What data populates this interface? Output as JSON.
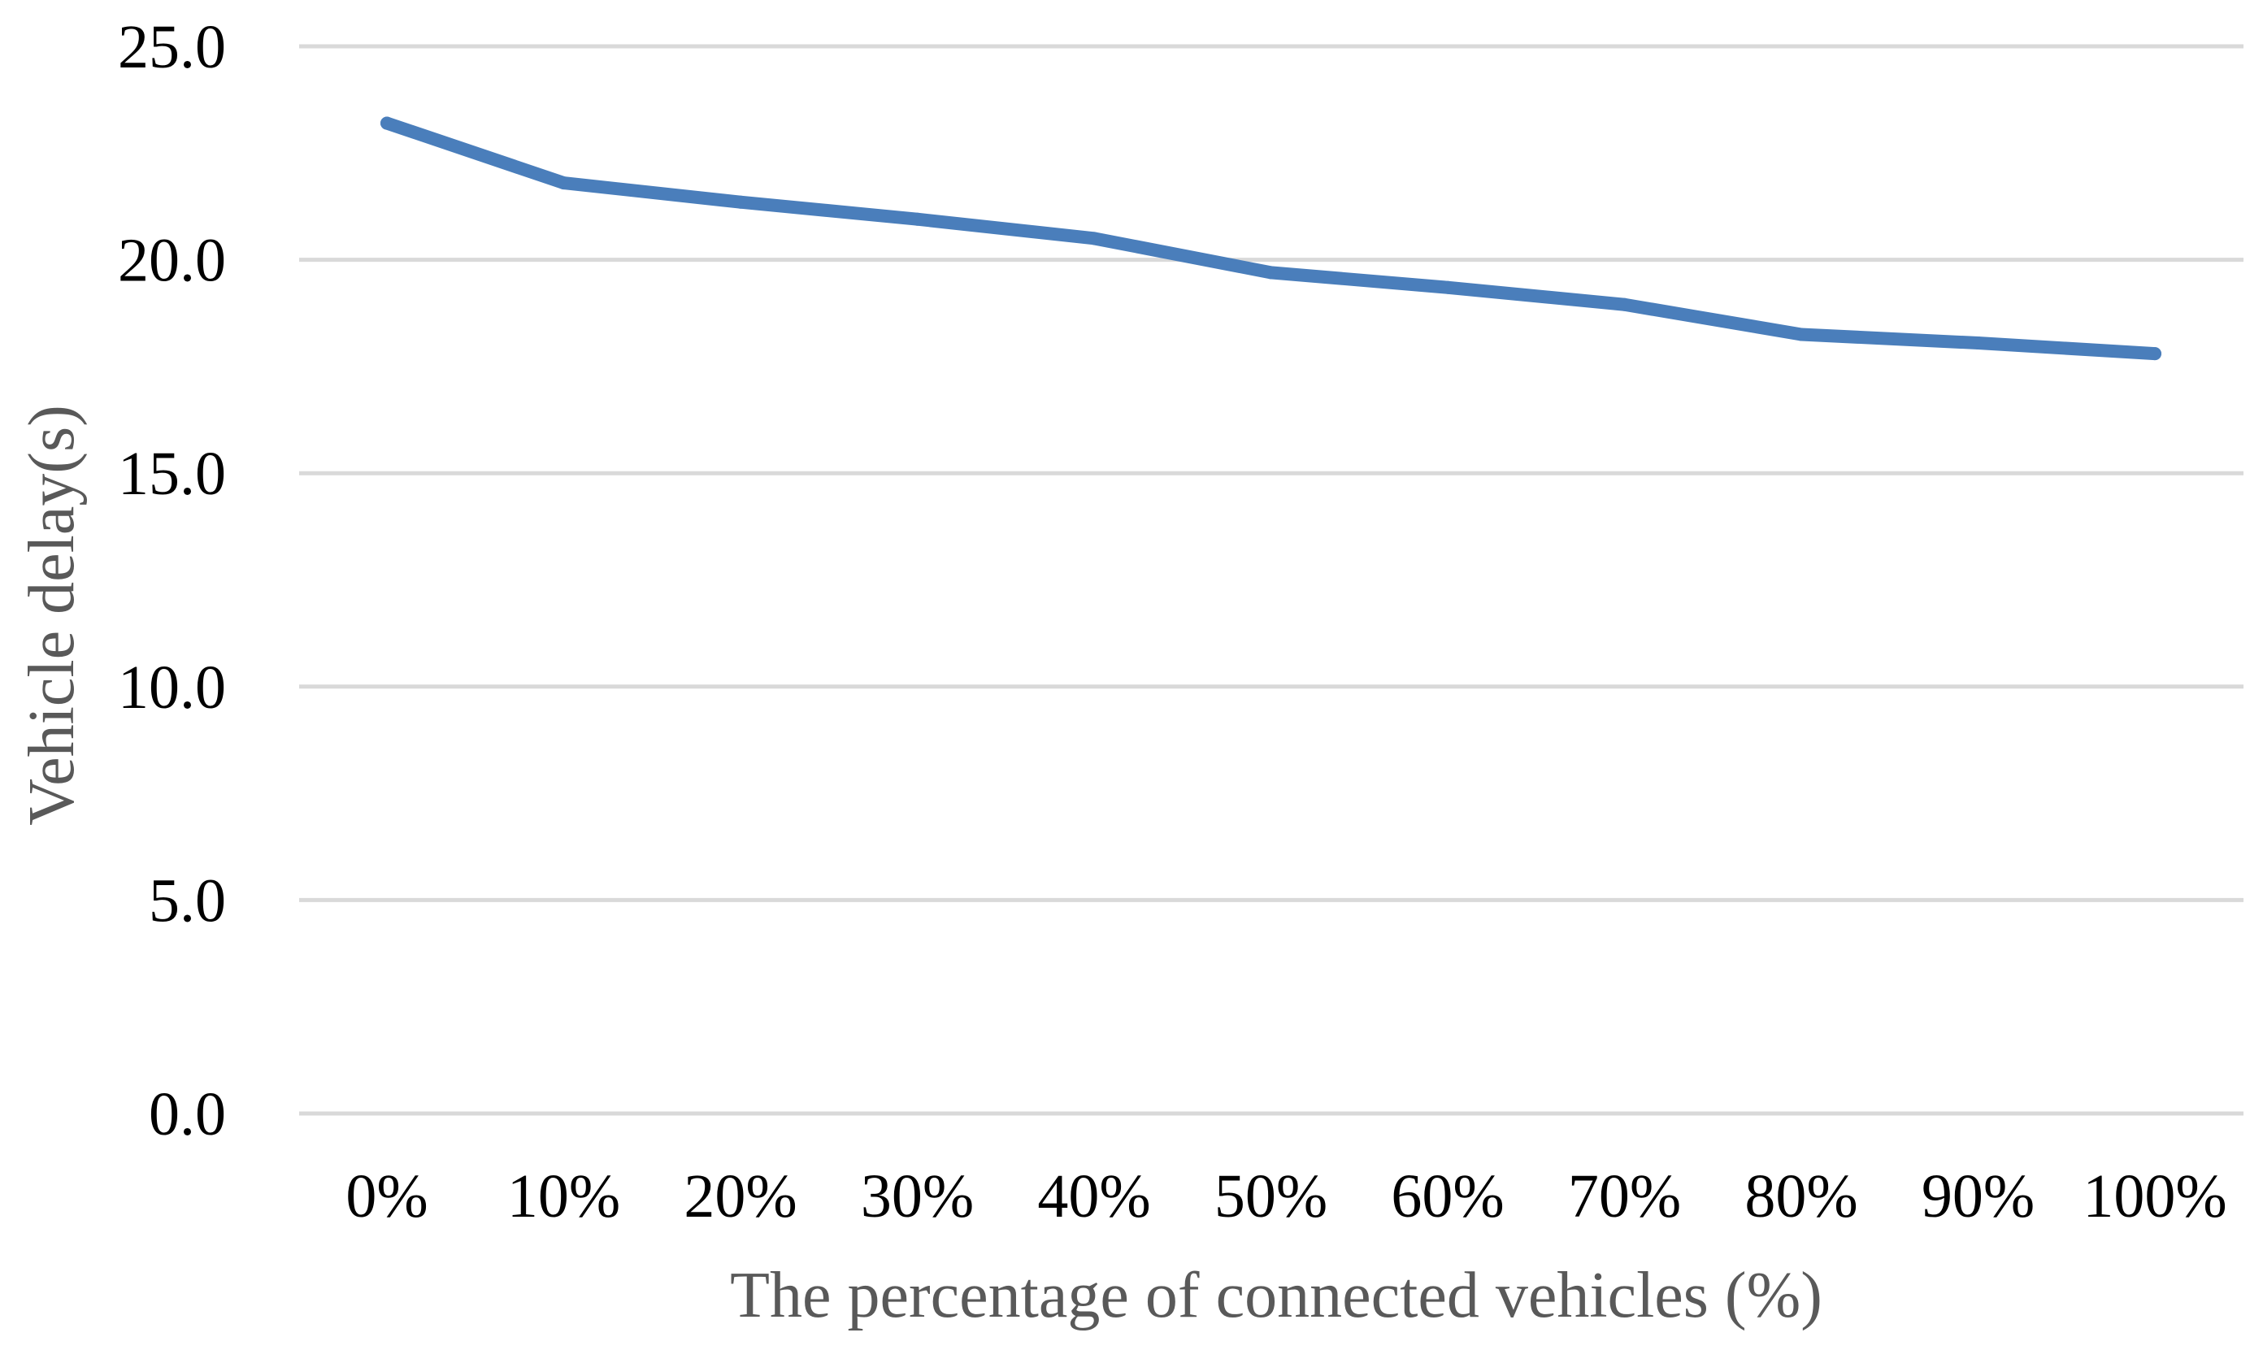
{
  "chart_data": {
    "type": "line",
    "title": "",
    "xlabel": "The percentage of connected vehicles (%)",
    "ylabel": "Vehicle delay(s)",
    "categories": [
      "0%",
      "10%",
      "20%",
      "30%",
      "40%",
      "50%",
      "60%",
      "70%",
      "80%",
      "90%",
      "100%"
    ],
    "series": [
      {
        "values": [
          23.2,
          21.8,
          21.35,
          20.95,
          20.5,
          19.7,
          19.35,
          18.95,
          18.25,
          18.05,
          17.8
        ],
        "color": "#4a7ebb"
      }
    ],
    "ylim": [
      0,
      25
    ],
    "yticks": [
      "0.0",
      "5.0",
      "10.0",
      "15.0",
      "20.0",
      "25.0"
    ],
    "grid": true,
    "legend": "none"
  }
}
